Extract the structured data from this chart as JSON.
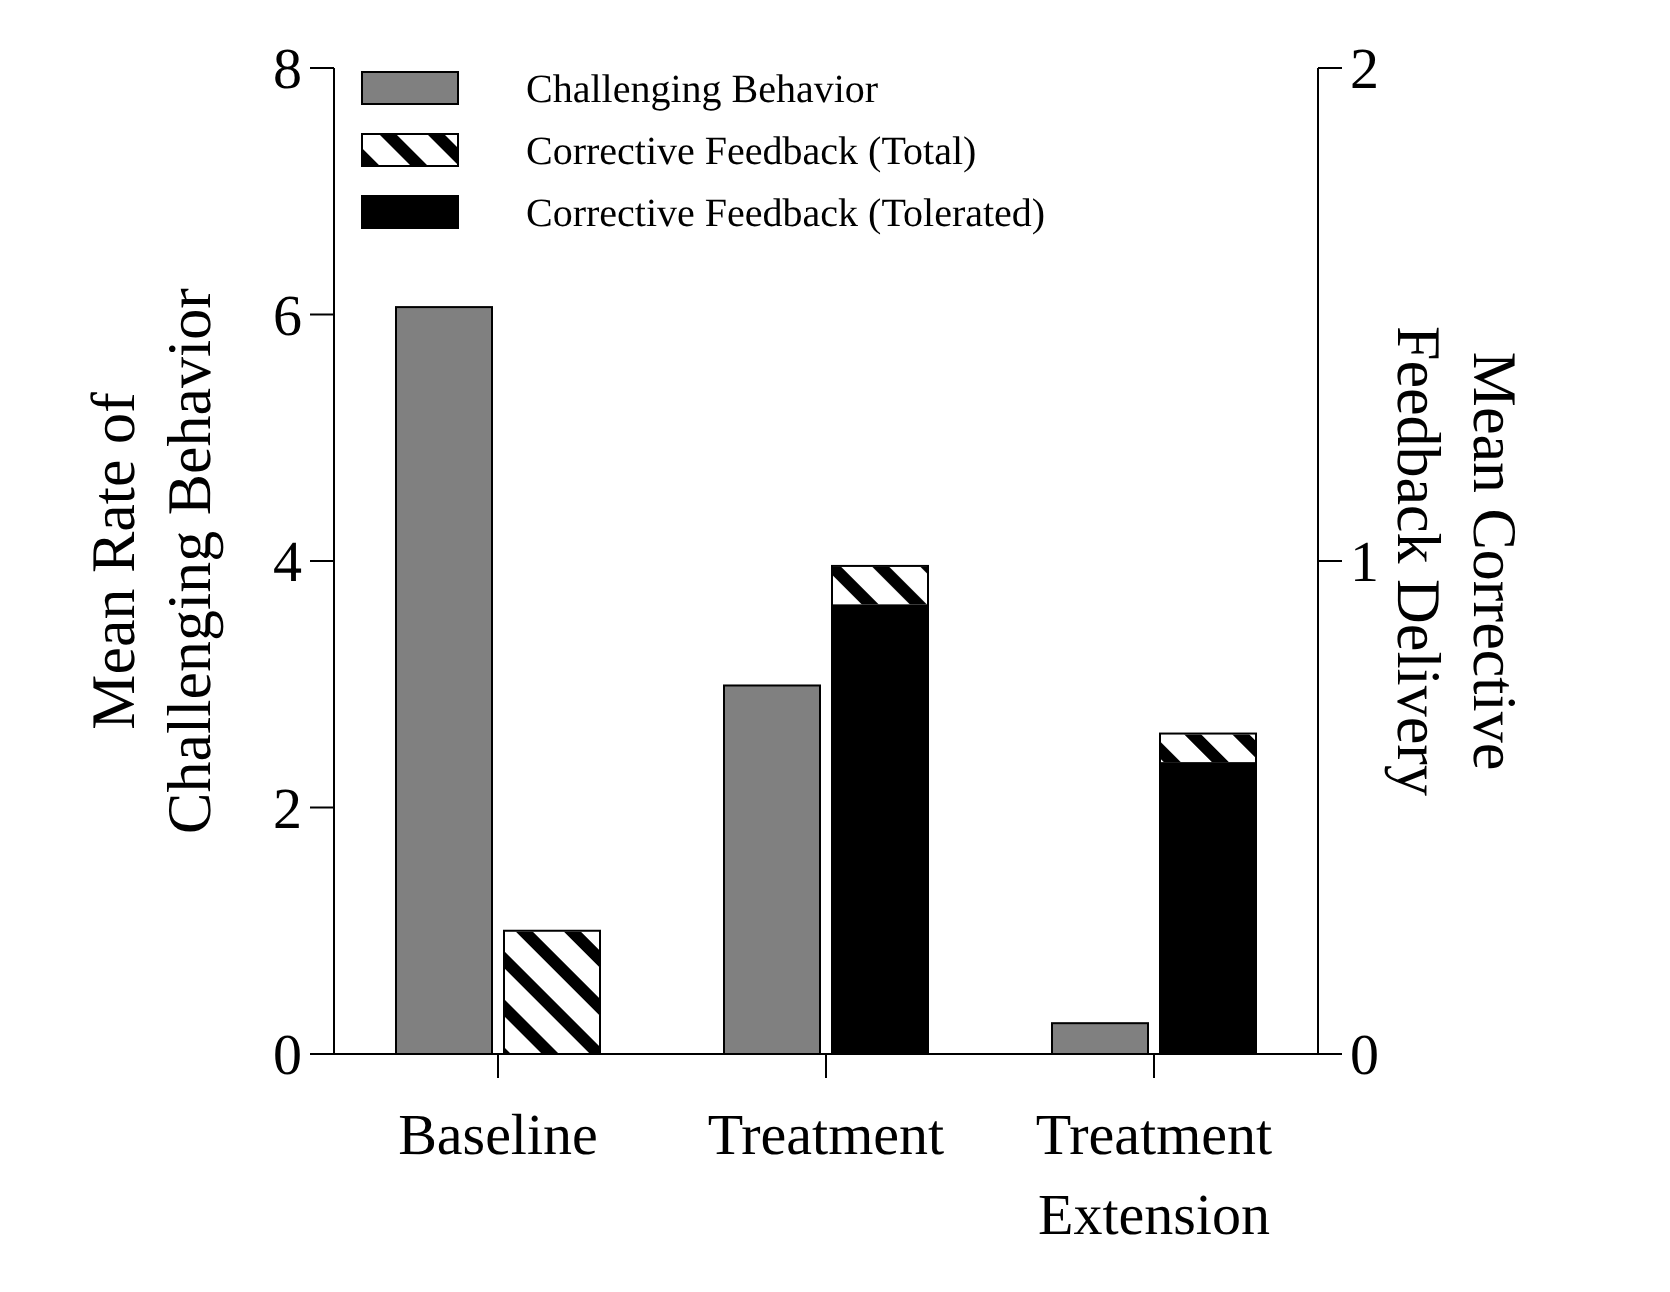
{
  "chart_data": {
    "type": "bar",
    "categories": [
      "Baseline",
      "Treatment",
      "Treatment Extension"
    ],
    "ylabel": "Mean Rate of Challenging Behavior",
    "y2label": "Mean Corrective Feedback Delivery",
    "ylim": [
      0,
      8
    ],
    "yticks": [
      0,
      2,
      4,
      6,
      8
    ],
    "y2lim": [
      0,
      2
    ],
    "y2ticks": [
      0,
      1,
      2
    ],
    "stacked": true,
    "legend": "top left",
    "grid": false,
    "series": [
      {
        "name": "Challenging Behavior",
        "color": "#808080",
        "values": [
          6.06,
          2.99,
          0.25
        ]
      },
      {
        "name": "Corrective Feedback (Tolerated)",
        "color": "#000000",
        "axis": "y2",
        "values": [
          null,
          0.91,
          0.59
        ]
      },
      {
        "name": "Corrective Feedback (Total)",
        "color": "#ffffff",
        "axis": "y2",
        "values": [
          0.25,
          0.08,
          0.06
        ]
      }
    ]
  }
}
